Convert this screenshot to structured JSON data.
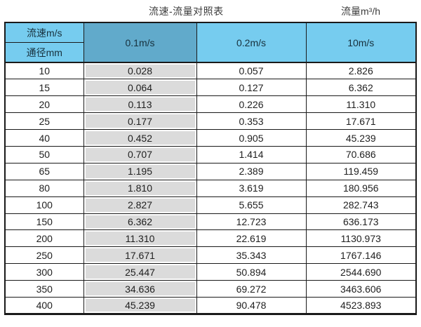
{
  "titles": {
    "main_title": "流速-流量对照表",
    "unit_title": "流量m³/h"
  },
  "table": {
    "corner": {
      "top": "流速m/s",
      "bottom": "通径mm"
    },
    "speed_columns": [
      "0.1m/s",
      "0.2m/s",
      "10m/s"
    ],
    "rows": [
      {
        "diameter": "10",
        "values": [
          "0.028",
          "0.057",
          "2.826"
        ]
      },
      {
        "diameter": "15",
        "values": [
          "0.064",
          "0.127",
          "6.362"
        ]
      },
      {
        "diameter": "20",
        "values": [
          "0.113",
          "0.226",
          "11.310"
        ]
      },
      {
        "diameter": "25",
        "values": [
          "0.177",
          "0.353",
          "17.671"
        ]
      },
      {
        "diameter": "40",
        "values": [
          "0.452",
          "0.905",
          "45.239"
        ]
      },
      {
        "diameter": "50",
        "values": [
          "0.707",
          "1.414",
          "70.686"
        ]
      },
      {
        "diameter": "65",
        "values": [
          "1.195",
          "2.389",
          "119.459"
        ]
      },
      {
        "diameter": "80",
        "values": [
          "1.810",
          "3.619",
          "180.956"
        ]
      },
      {
        "diameter": "100",
        "values": [
          "2.827",
          "5.655",
          "282.743"
        ]
      },
      {
        "diameter": "150",
        "values": [
          "6.362",
          "12.723",
          "636.173"
        ]
      },
      {
        "diameter": "200",
        "values": [
          "11.310",
          "22.619",
          "1130.973"
        ]
      },
      {
        "diameter": "250",
        "values": [
          "17.671",
          "35.343",
          "1767.146"
        ]
      },
      {
        "diameter": "300",
        "values": [
          "25.447",
          "50.894",
          "2544.690"
        ]
      },
      {
        "diameter": "350",
        "values": [
          "34.636",
          "69.272",
          "3463.606"
        ]
      },
      {
        "diameter": "400",
        "values": [
          "45.239",
          "90.478",
          "4523.893"
        ]
      }
    ]
  },
  "colors": {
    "header_light_blue": "#76ccef",
    "header_dark_blue": "#61aacb",
    "highlight_gray": "#dbdbdb",
    "border_black": "#1a1a1a"
  },
  "chart_data": {
    "type": "table",
    "title": "流速-流量对照表",
    "unit_label": "流量m³/h",
    "row_header_label": "通径mm",
    "column_header_label": "流速m/s",
    "columns": [
      "0.1m/s",
      "0.2m/s",
      "10m/s"
    ],
    "diameters_mm": [
      10,
      15,
      20,
      25,
      40,
      50,
      65,
      80,
      100,
      150,
      200,
      250,
      300,
      350,
      400
    ],
    "flow_at_0_1ms": [
      0.028,
      0.064,
      0.113,
      0.177,
      0.452,
      0.707,
      1.195,
      1.81,
      2.827,
      6.362,
      11.31,
      17.671,
      25.447,
      34.636,
      45.239
    ],
    "flow_at_0_2ms": [
      0.057,
      0.127,
      0.226,
      0.353,
      0.905,
      1.414,
      2.389,
      3.619,
      5.655,
      12.723,
      22.619,
      35.343,
      50.894,
      69.272,
      90.478
    ],
    "flow_at_10ms": [
      2.826,
      6.362,
      11.31,
      17.671,
      45.239,
      70.686,
      119.459,
      180.956,
      282.743,
      636.173,
      1130.973,
      1767.146,
      2544.69,
      3463.606,
      4523.893
    ]
  }
}
